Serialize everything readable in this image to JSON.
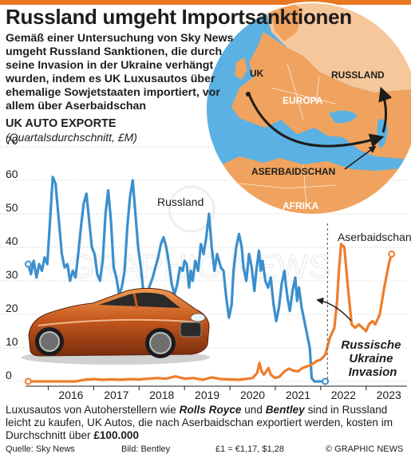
{
  "header": {
    "title": "Russland umgeht Importsanktionen",
    "intro": "Gemäß einer Untersuchung von Sky News umgeht Russland Sanktionen, die durch seine Invasion in der Ukraine verhängt wurden, indem es UK Luxusautos über ehemalige Sowjetstaaten importiert, vor allem über Aserbaidschan"
  },
  "map": {
    "labels": {
      "uk": "UK",
      "russland": "RUSSLAND",
      "europa": "EUROPA",
      "aserbaidschan": "ASERBAIDSCHAN",
      "afrika": "AFRIKA"
    },
    "colors": {
      "land": "#f0a35e",
      "sea": "#5bb1e3",
      "russia": "#f6c79b"
    }
  },
  "chart_data": {
    "type": "line",
    "title": "UK AUTO EXPORTE",
    "subtitle": "(Quartalsdurchschnitt, £M)",
    "ylim": [
      0,
      70
    ],
    "yticks": [
      0,
      10,
      20,
      30,
      40,
      50,
      60,
      70
    ],
    "xlim": [
      2015.5,
      2023.9
    ],
    "xticks": [
      "2016",
      "2017",
      "2018",
      "2019",
      "2020",
      "2021",
      "2022",
      "2023"
    ],
    "grid": true,
    "series": [
      {
        "name": "Russland",
        "color": "#3b8fcd",
        "points": [
          [
            2015.56,
            35
          ],
          [
            2015.62,
            32
          ],
          [
            2015.68,
            36
          ],
          [
            2015.74,
            31
          ],
          [
            2015.8,
            35
          ],
          [
            2015.86,
            33
          ],
          [
            2015.92,
            37
          ],
          [
            2015.98,
            35
          ],
          [
            2016.04,
            48
          ],
          [
            2016.1,
            61
          ],
          [
            2016.16,
            59
          ],
          [
            2016.22,
            50
          ],
          [
            2016.3,
            38
          ],
          [
            2016.36,
            34
          ],
          [
            2016.42,
            35
          ],
          [
            2016.48,
            30
          ],
          [
            2016.54,
            33
          ],
          [
            2016.6,
            31
          ],
          [
            2016.66,
            38
          ],
          [
            2016.72,
            46
          ],
          [
            2016.78,
            53
          ],
          [
            2016.84,
            56
          ],
          [
            2016.9,
            48
          ],
          [
            2016.96,
            40
          ],
          [
            2017.02,
            38
          ],
          [
            2017.08,
            32
          ],
          [
            2017.14,
            30
          ],
          [
            2017.2,
            36
          ],
          [
            2017.26,
            50
          ],
          [
            2017.32,
            57
          ],
          [
            2017.38,
            48
          ],
          [
            2017.44,
            34
          ],
          [
            2017.5,
            31
          ],
          [
            2017.56,
            26
          ],
          [
            2017.62,
            28
          ],
          [
            2017.68,
            33
          ],
          [
            2017.74,
            46
          ],
          [
            2017.8,
            55
          ],
          [
            2017.86,
            60
          ],
          [
            2017.92,
            50
          ],
          [
            2017.98,
            40
          ],
          [
            2018.04,
            34
          ],
          [
            2018.1,
            26
          ],
          [
            2018.16,
            24
          ],
          [
            2018.22,
            28
          ],
          [
            2018.3,
            31
          ],
          [
            2018.36,
            34
          ],
          [
            2018.42,
            37
          ],
          [
            2018.48,
            41
          ],
          [
            2018.54,
            43
          ],
          [
            2018.6,
            40
          ],
          [
            2018.66,
            35
          ],
          [
            2018.72,
            29
          ],
          [
            2018.78,
            26
          ],
          [
            2018.84,
            29
          ],
          [
            2018.9,
            34
          ],
          [
            2018.96,
            33
          ],
          [
            2019.0,
            36
          ],
          [
            2019.05,
            35
          ],
          [
            2019.1,
            28
          ],
          [
            2019.14,
            33
          ],
          [
            2019.18,
            30
          ],
          [
            2019.24,
            36
          ],
          [
            2019.3,
            33
          ],
          [
            2019.36,
            41
          ],
          [
            2019.42,
            38
          ],
          [
            2019.48,
            43
          ],
          [
            2019.54,
            50
          ],
          [
            2019.6,
            40
          ],
          [
            2019.66,
            33
          ],
          [
            2019.72,
            38
          ],
          [
            2019.8,
            34
          ],
          [
            2019.86,
            33
          ],
          [
            2019.92,
            25
          ],
          [
            2019.98,
            19
          ],
          [
            2020.04,
            23
          ],
          [
            2020.08,
            33
          ],
          [
            2020.14,
            40
          ],
          [
            2020.2,
            44
          ],
          [
            2020.26,
            40
          ],
          [
            2020.3,
            34
          ],
          [
            2020.36,
            30
          ],
          [
            2020.42,
            38
          ],
          [
            2020.48,
            34
          ],
          [
            2020.54,
            27
          ],
          [
            2020.58,
            33
          ],
          [
            2020.64,
            39
          ],
          [
            2020.68,
            33
          ],
          [
            2020.72,
            36
          ],
          [
            2020.78,
            30
          ],
          [
            2020.84,
            28
          ],
          [
            2020.9,
            31
          ],
          [
            2020.96,
            23
          ],
          [
            2021.02,
            18
          ],
          [
            2021.08,
            22
          ],
          [
            2021.14,
            29
          ],
          [
            2021.2,
            33
          ],
          [
            2021.24,
            28
          ],
          [
            2021.28,
            24
          ],
          [
            2021.32,
            21
          ],
          [
            2021.38,
            27
          ],
          [
            2021.44,
            31
          ],
          [
            2021.48,
            24
          ],
          [
            2021.52,
            28
          ],
          [
            2021.58,
            22
          ],
          [
            2021.64,
            18
          ],
          [
            2021.7,
            14
          ],
          [
            2021.76,
            10
          ],
          [
            2021.8,
            1
          ],
          [
            2021.86,
            0
          ],
          [
            2021.92,
            0
          ]
        ],
        "end_point": [
          2022.1,
          0
        ]
      },
      {
        "name": "Aserbaidschan",
        "color": "#ee7d2b",
        "points": [
          [
            2015.56,
            0
          ],
          [
            2016.0,
            0
          ],
          [
            2016.6,
            0
          ],
          [
            2016.8,
            0.5
          ],
          [
            2017.0,
            0.7
          ],
          [
            2017.2,
            0.5
          ],
          [
            2017.4,
            0.6
          ],
          [
            2017.6,
            0.5
          ],
          [
            2017.8,
            0.7
          ],
          [
            2018.0,
            0.6
          ],
          [
            2018.2,
            0.8
          ],
          [
            2018.4,
            1.0
          ],
          [
            2018.6,
            0.8
          ],
          [
            2018.8,
            1.5
          ],
          [
            2019.0,
            0.8
          ],
          [
            2019.2,
            1.0
          ],
          [
            2019.4,
            0.5
          ],
          [
            2019.6,
            1.2
          ],
          [
            2019.8,
            0.7
          ],
          [
            2020.0,
            0.6
          ],
          [
            2020.2,
            0.5
          ],
          [
            2020.4,
            0.8
          ],
          [
            2020.5,
            1.0
          ],
          [
            2020.6,
            2.5
          ],
          [
            2020.65,
            5.5
          ],
          [
            2020.7,
            3.0
          ],
          [
            2020.75,
            2.0
          ],
          [
            2020.8,
            3.0
          ],
          [
            2020.85,
            4.0
          ],
          [
            2020.9,
            2.0
          ],
          [
            2020.95,
            1.5
          ],
          [
            2021.0,
            1.0
          ],
          [
            2021.1,
            1.5
          ],
          [
            2021.2,
            3.0
          ],
          [
            2021.3,
            3.8
          ],
          [
            2021.4,
            3.2
          ],
          [
            2021.5,
            3.0
          ],
          [
            2021.6,
            4.0
          ],
          [
            2021.7,
            4.5
          ],
          [
            2021.8,
            5.0
          ],
          [
            2021.9,
            6.0
          ],
          [
            2022.0,
            6.5
          ],
          [
            2022.1,
            8
          ],
          [
            2022.2,
            13
          ],
          [
            2022.3,
            16
          ],
          [
            2022.36,
            24
          ],
          [
            2022.4,
            33
          ],
          [
            2022.45,
            41
          ],
          [
            2022.52,
            40
          ],
          [
            2022.6,
            28
          ],
          [
            2022.68,
            17
          ],
          [
            2022.76,
            16
          ],
          [
            2022.84,
            17
          ],
          [
            2022.92,
            16
          ],
          [
            2023.0,
            15
          ],
          [
            2023.06,
            17
          ],
          [
            2023.14,
            18
          ],
          [
            2023.2,
            17
          ],
          [
            2023.3,
            20
          ],
          [
            2023.4,
            28
          ],
          [
            2023.5,
            35
          ],
          [
            2023.56,
            38
          ]
        ]
      }
    ],
    "annotations": {
      "invasion": "Russische Ukraine Invasion",
      "invasion_x": 2022.15
    }
  },
  "car": {
    "colors": {
      "body": "#c8591e",
      "highlight": "#f09a52",
      "shadow": "#7a2d0e"
    }
  },
  "watermark": "GRAPHIC NEWS",
  "footer": {
    "note_part1": "Luxusautos von Autoherstellern wie ",
    "brand1": "Rolls Royce",
    "note_and": " und ",
    "brand2": "Bentley",
    "note_part2": " sind in Russland leicht zu kaufen, UK Autos, die nach Aserbaidschan exportiert werden, kosten im Durchschnitt über ",
    "price": "£100.000",
    "source": "Quelle: Sky News",
    "photo_credit": "Bild: Bentley",
    "fx_rate": "£1 = €1,17, $1,28",
    "copyright": "© GRAPHIC NEWS"
  }
}
